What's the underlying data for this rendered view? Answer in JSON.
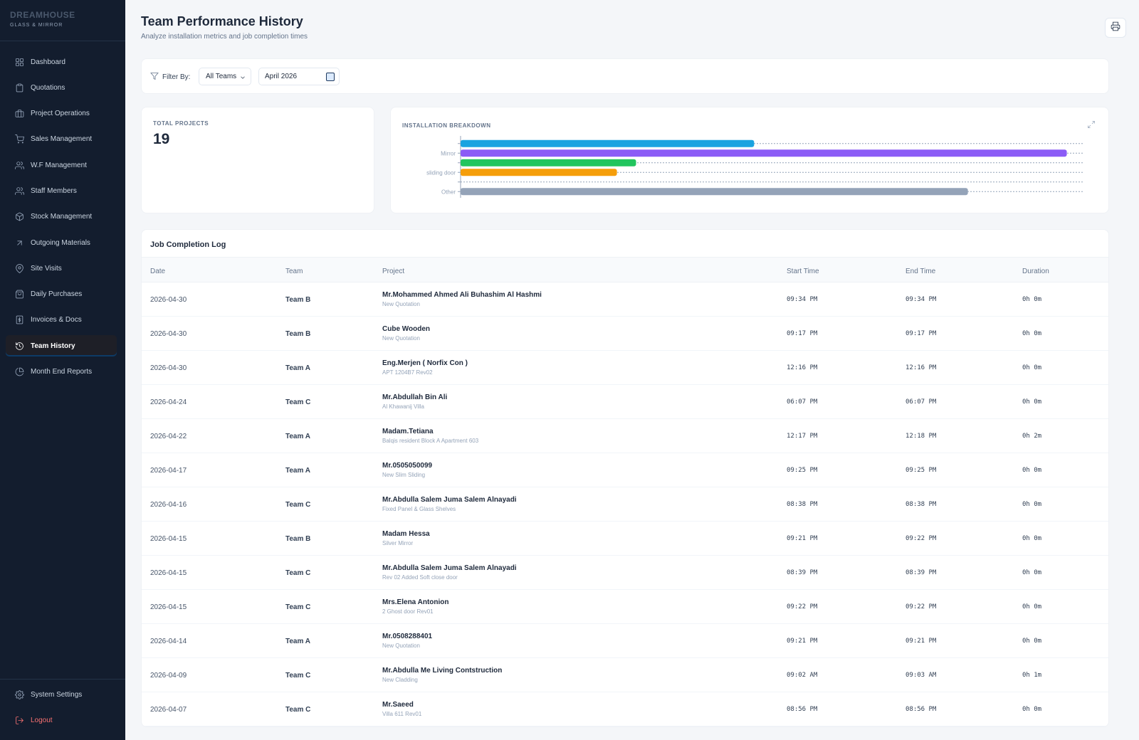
{
  "brand": {
    "name": "DREAMHOUSE",
    "sub": "GLASS & MIRROR"
  },
  "sidebar": {
    "items": [
      {
        "label": "Dashboard",
        "icon": "grid-icon"
      },
      {
        "label": "Quotations",
        "icon": "clipboard-icon"
      },
      {
        "label": "Project Operations",
        "icon": "briefcase-icon"
      },
      {
        "label": "Sales Management",
        "icon": "cart-icon"
      },
      {
        "label": "W.F Management",
        "icon": "users-icon"
      },
      {
        "label": "Staff Members",
        "icon": "users-icon"
      },
      {
        "label": "Stock Management",
        "icon": "box-icon"
      },
      {
        "label": "Outgoing Materials",
        "icon": "arrow-up-right-icon"
      },
      {
        "label": "Site Visits",
        "icon": "map-pin-icon"
      },
      {
        "label": "Daily Purchases",
        "icon": "bag-icon"
      },
      {
        "label": "Invoices & Docs",
        "icon": "invoice-icon"
      },
      {
        "label": "Team History",
        "icon": "history-icon",
        "active": true
      },
      {
        "label": "Month End Reports",
        "icon": "pie-chart-icon"
      }
    ],
    "settings_label": "System Settings",
    "logout_label": "Logout"
  },
  "header": {
    "title": "Team Performance History",
    "subtitle": "Analyze installation metrics and job completion times"
  },
  "filters": {
    "label": "Filter By:",
    "team_value": "All Teams",
    "month_value": "April 2026"
  },
  "stats": {
    "total_projects_label": "TOTAL PROJECTS",
    "total_projects_value": "19"
  },
  "chart_data": {
    "type": "bar",
    "orientation": "horizontal",
    "title": "INSTALLATION BREAKDOWN",
    "categories": [
      "",
      "Mirror",
      "",
      "sliding door",
      "",
      "Other"
    ],
    "values": [
      9.2,
      19,
      5.5,
      4.9,
      0,
      15.9
    ],
    "colors": [
      "#1aa3e0",
      "#8b5cf6",
      "#22c55e",
      "#f59e0b",
      "#cbd5e1",
      "#94a3b8"
    ],
    "xlim": [
      0,
      19.5
    ],
    "grid": true
  },
  "table": {
    "title": "Job Completion Log",
    "columns": [
      "Date",
      "Team",
      "Project",
      "Start Time",
      "End Time",
      "Duration"
    ],
    "rows": [
      {
        "date": "2026-04-30",
        "team": "Team B",
        "project": "Mr.Mohammed Ahmed Ali Buhashim Al Hashmi",
        "detail": "New Quotation",
        "start": "09:34 PM",
        "end": "09:34 PM",
        "duration": "0h 0m"
      },
      {
        "date": "2026-04-30",
        "team": "Team B",
        "project": "Cube Wooden",
        "detail": "New Quotation",
        "start": "09:17 PM",
        "end": "09:17 PM",
        "duration": "0h 0m"
      },
      {
        "date": "2026-04-30",
        "team": "Team A",
        "project": "Eng.Merjen ( Norfix Con )",
        "detail": "APT 1204B7 Rev02",
        "start": "12:16 PM",
        "end": "12:16 PM",
        "duration": "0h 0m"
      },
      {
        "date": "2026-04-24",
        "team": "Team C",
        "project": "Mr.Abdullah Bin Ali",
        "detail": "Al Khawanij Villa",
        "start": "06:07 PM",
        "end": "06:07 PM",
        "duration": "0h 0m"
      },
      {
        "date": "2026-04-22",
        "team": "Team A",
        "project": "Madam.Tetiana",
        "detail": "Balqis resident Block A Apartment 603",
        "start": "12:17 PM",
        "end": "12:18 PM",
        "duration": "0h 2m"
      },
      {
        "date": "2026-04-17",
        "team": "Team A",
        "project": "Mr.0505050099",
        "detail": "New Slim Sliding",
        "start": "09:25 PM",
        "end": "09:25 PM",
        "duration": "0h 0m"
      },
      {
        "date": "2026-04-16",
        "team": "Team C",
        "project": "Mr.Abdulla Salem Juma Salem Alnayadi",
        "detail": "Fixed Panel & Glass Shelves",
        "start": "08:38 PM",
        "end": "08:38 PM",
        "duration": "0h 0m"
      },
      {
        "date": "2026-04-15",
        "team": "Team B",
        "project": "Madam Hessa",
        "detail": "Silver Mirror",
        "start": "09:21 PM",
        "end": "09:22 PM",
        "duration": "0h 0m"
      },
      {
        "date": "2026-04-15",
        "team": "Team C",
        "project": "Mr.Abdulla Salem Juma Salem Alnayadi",
        "detail": "Rev 02 Added Soft close door",
        "start": "08:39 PM",
        "end": "08:39 PM",
        "duration": "0h 0m"
      },
      {
        "date": "2026-04-15",
        "team": "Team C",
        "project": "Mrs.Elena Antonion",
        "detail": "2 Ghost door Rev01",
        "start": "09:22 PM",
        "end": "09:22 PM",
        "duration": "0h 0m"
      },
      {
        "date": "2026-04-14",
        "team": "Team A",
        "project": "Mr.0508288401",
        "detail": "New Quotation",
        "start": "09:21 PM",
        "end": "09:21 PM",
        "duration": "0h 0m"
      },
      {
        "date": "2026-04-09",
        "team": "Team C",
        "project": "Mr.Abdulla Me Living Contstruction",
        "detail": "New Cladding",
        "start": "09:02 AM",
        "end": "09:03 AM",
        "duration": "0h 1m"
      },
      {
        "date": "2026-04-07",
        "team": "Team C",
        "project": "Mr.Saeed",
        "detail": "Villa 611 Rev01",
        "start": "08:56 PM",
        "end": "08:56 PM",
        "duration": "0h 0m"
      }
    ]
  }
}
